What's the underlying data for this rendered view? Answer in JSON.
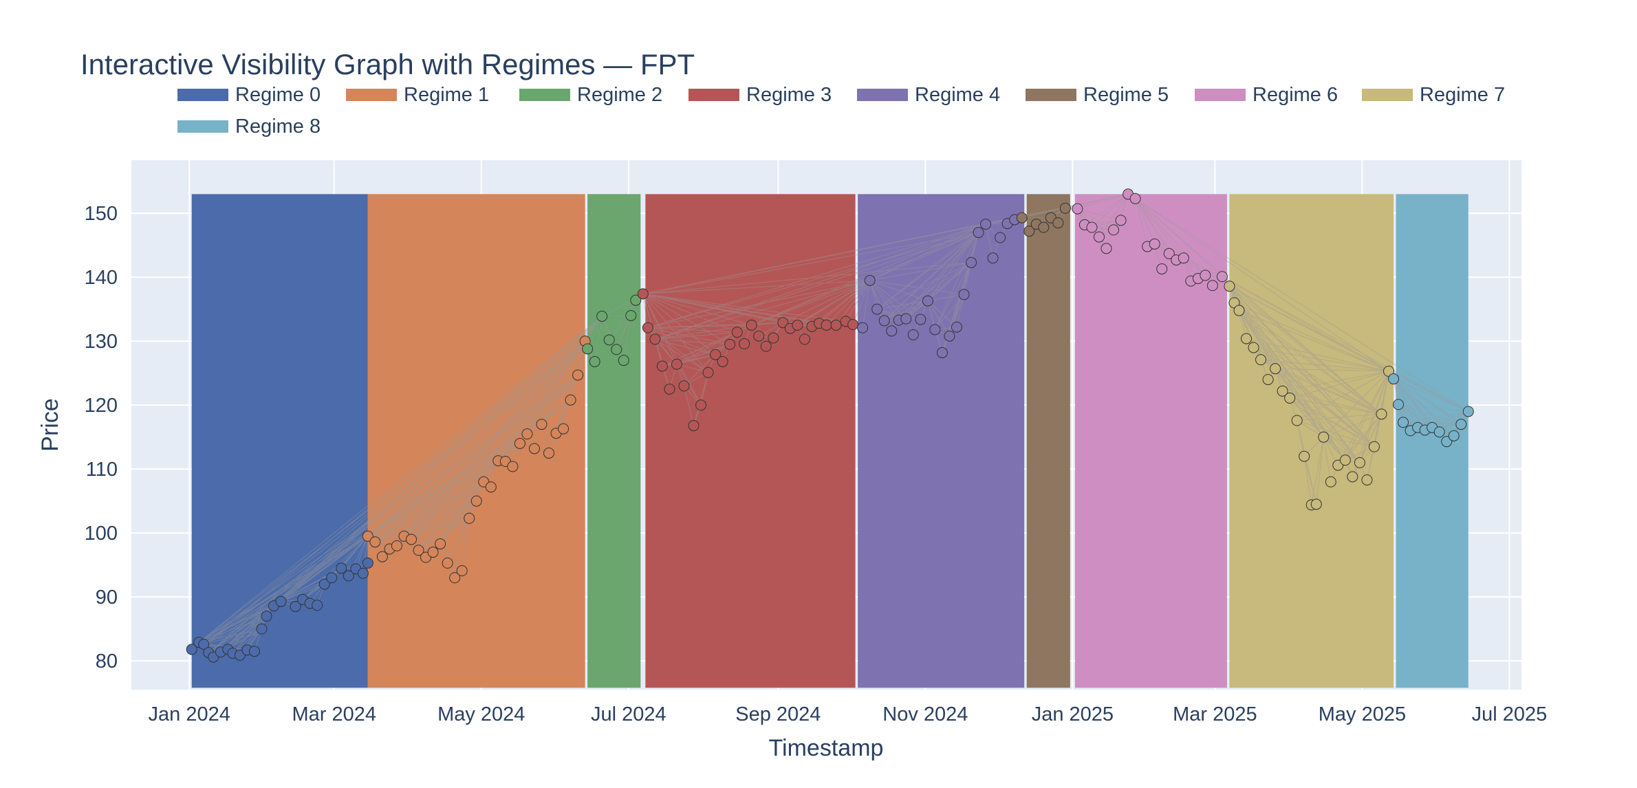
{
  "chart_data": {
    "type": "scatter",
    "title": "Interactive Visibility Graph with Regimes — FPT",
    "xlabel": "Timestamp",
    "ylabel": "Price",
    "ylim": [
      75.5,
      158.3
    ],
    "yticks": [
      80,
      90,
      100,
      110,
      120,
      130,
      140,
      150
    ],
    "ytick_labels": [
      "80",
      "90",
      "100",
      "110",
      "120",
      "130",
      "140",
      "150"
    ],
    "xlim": [
      "2023-12-08",
      "2025-07-06"
    ],
    "xticks": [
      "2024-01-01",
      "2024-03-01",
      "2024-05-01",
      "2024-07-01",
      "2024-09-01",
      "2024-11-01",
      "2025-01-01",
      "2025-03-01",
      "2025-05-01",
      "2025-07-01"
    ],
    "xtick_labels": [
      "Jan 2024",
      "Mar 2024",
      "May 2024",
      "Jul 2024",
      "Sep 2024",
      "Nov 2024",
      "Jan 2025",
      "Mar 2025",
      "May 2025",
      "Jul 2025"
    ],
    "grid": true,
    "legend_position": "top",
    "plot_bg": "#e5ecf6",
    "edge_color": "#9a9a9a",
    "band_top": 153.0,
    "series": [
      {
        "name": "Regime 0",
        "color": "#4c6bab",
        "start": "2024-01-02",
        "end": "2024-03-15",
        "points": [
          [
            "2024-01-02",
            81.8
          ],
          [
            "2024-01-05",
            82.9
          ],
          [
            "2024-01-07",
            82.6
          ],
          [
            "2024-01-09",
            81.3
          ],
          [
            "2024-01-11",
            80.6
          ],
          [
            "2024-01-14",
            81.4
          ],
          [
            "2024-01-17",
            81.8
          ],
          [
            "2024-01-19",
            81.2
          ],
          [
            "2024-01-22",
            80.9
          ],
          [
            "2024-01-25",
            81.7
          ],
          [
            "2024-01-28",
            81.5
          ],
          [
            "2024-01-31",
            85.0
          ],
          [
            "2024-02-02",
            87.0
          ],
          [
            "2024-02-05",
            88.6
          ],
          [
            "2024-02-08",
            89.3
          ],
          [
            "2024-02-14",
            88.5
          ],
          [
            "2024-02-17",
            89.6
          ],
          [
            "2024-02-20",
            89.0
          ],
          [
            "2024-02-23",
            88.7
          ],
          [
            "2024-02-26",
            92.0
          ],
          [
            "2024-02-29",
            93.0
          ],
          [
            "2024-03-04",
            94.5
          ],
          [
            "2024-03-07",
            93.3
          ],
          [
            "2024-03-10",
            94.4
          ],
          [
            "2024-03-13",
            93.7
          ],
          [
            "2024-03-15",
            95.3
          ]
        ]
      },
      {
        "name": "Regime 1",
        "color": "#d4855a",
        "start": "2024-03-15",
        "end": "2024-06-13",
        "points": [
          [
            "2024-03-15",
            99.5
          ],
          [
            "2024-03-18",
            98.6
          ],
          [
            "2024-03-21",
            96.3
          ],
          [
            "2024-03-24",
            97.5
          ],
          [
            "2024-03-27",
            98.0
          ],
          [
            "2024-03-30",
            99.5
          ],
          [
            "2024-04-02",
            99.0
          ],
          [
            "2024-04-05",
            97.3
          ],
          [
            "2024-04-08",
            96.2
          ],
          [
            "2024-04-11",
            97.0
          ],
          [
            "2024-04-14",
            98.3
          ],
          [
            "2024-04-17",
            95.3
          ],
          [
            "2024-04-20",
            93.0
          ],
          [
            "2024-04-23",
            94.1
          ],
          [
            "2024-04-26",
            102.3
          ],
          [
            "2024-04-29",
            105.0
          ],
          [
            "2024-05-02",
            108.0
          ],
          [
            "2024-05-05",
            107.2
          ],
          [
            "2024-05-08",
            111.3
          ],
          [
            "2024-05-11",
            111.2
          ],
          [
            "2024-05-14",
            110.4
          ],
          [
            "2024-05-17",
            114.0
          ],
          [
            "2024-05-20",
            115.5
          ],
          [
            "2024-05-23",
            113.2
          ],
          [
            "2024-05-26",
            117.0
          ],
          [
            "2024-05-29",
            112.5
          ],
          [
            "2024-06-01",
            115.6
          ],
          [
            "2024-06-04",
            116.3
          ],
          [
            "2024-06-07",
            120.8
          ],
          [
            "2024-06-10",
            124.7
          ],
          [
            "2024-06-13",
            130.0
          ]
        ]
      },
      {
        "name": "Regime 2",
        "color": "#6aa66e",
        "start": "2024-06-14",
        "end": "2024-07-06",
        "points": [
          [
            "2024-06-14",
            128.8
          ],
          [
            "2024-06-17",
            126.8
          ],
          [
            "2024-06-20",
            133.9
          ],
          [
            "2024-06-23",
            130.2
          ],
          [
            "2024-06-26",
            128.7
          ],
          [
            "2024-06-29",
            127.0
          ],
          [
            "2024-07-02",
            134.0
          ],
          [
            "2024-07-04",
            136.4
          ]
        ]
      },
      {
        "name": "Regime 3",
        "color": "#b55656",
        "start": "2024-07-08",
        "end": "2024-10-03",
        "points": [
          [
            "2024-07-07",
            137.4
          ],
          [
            "2024-07-09",
            132.1
          ],
          [
            "2024-07-12",
            130.3
          ],
          [
            "2024-07-15",
            126.1
          ],
          [
            "2024-07-18",
            122.5
          ],
          [
            "2024-07-21",
            126.4
          ],
          [
            "2024-07-24",
            123.0
          ],
          [
            "2024-07-28",
            116.8
          ],
          [
            "2024-07-31",
            120.0
          ],
          [
            "2024-08-03",
            125.1
          ],
          [
            "2024-08-06",
            127.9
          ],
          [
            "2024-08-09",
            126.8
          ],
          [
            "2024-08-12",
            129.5
          ],
          [
            "2024-08-15",
            131.4
          ],
          [
            "2024-08-18",
            129.6
          ],
          [
            "2024-08-21",
            132.5
          ],
          [
            "2024-08-24",
            130.8
          ],
          [
            "2024-08-27",
            129.2
          ],
          [
            "2024-08-30",
            130.5
          ],
          [
            "2024-09-03",
            132.9
          ],
          [
            "2024-09-06",
            132.0
          ],
          [
            "2024-09-09",
            132.5
          ],
          [
            "2024-09-12",
            130.3
          ],
          [
            "2024-09-15",
            132.3
          ],
          [
            "2024-09-18",
            132.8
          ],
          [
            "2024-09-21",
            132.5
          ],
          [
            "2024-09-25",
            132.5
          ],
          [
            "2024-09-29",
            133.1
          ],
          [
            "2024-10-02",
            132.6
          ]
        ]
      },
      {
        "name": "Regime 4",
        "color": "#7e73b0",
        "start": "2024-10-04",
        "end": "2024-12-12",
        "points": [
          [
            "2024-10-06",
            132.1
          ],
          [
            "2024-10-09",
            139.5
          ],
          [
            "2024-10-12",
            135.0
          ],
          [
            "2024-10-15",
            133.2
          ],
          [
            "2024-10-18",
            131.6
          ],
          [
            "2024-10-21",
            133.3
          ],
          [
            "2024-10-24",
            133.5
          ],
          [
            "2024-10-27",
            131.0
          ],
          [
            "2024-10-30",
            133.4
          ],
          [
            "2024-11-02",
            136.3
          ],
          [
            "2024-11-05",
            131.8
          ],
          [
            "2024-11-08",
            128.2
          ],
          [
            "2024-11-11",
            130.8
          ],
          [
            "2024-11-14",
            132.2
          ],
          [
            "2024-11-17",
            137.3
          ],
          [
            "2024-11-20",
            142.3
          ],
          [
            "2024-11-23",
            147.0
          ],
          [
            "2024-11-26",
            148.3
          ],
          [
            "2024-11-29",
            143.0
          ],
          [
            "2024-12-02",
            146.2
          ],
          [
            "2024-12-05",
            148.4
          ],
          [
            "2024-12-08",
            149.0
          ]
        ]
      },
      {
        "name": "Regime 5",
        "color": "#8e7660",
        "start": "2024-12-13",
        "end": "2024-12-31",
        "points": [
          [
            "2024-12-11",
            149.3
          ],
          [
            "2024-12-14",
            147.2
          ],
          [
            "2024-12-17",
            148.3
          ],
          [
            "2024-12-20",
            147.8
          ],
          [
            "2024-12-23",
            149.3
          ],
          [
            "2024-12-26",
            148.5
          ],
          [
            "2024-12-29",
            150.8
          ]
        ]
      },
      {
        "name": "Regime 6",
        "color": "#cf8ec2",
        "start": "2025-01-02",
        "end": "2025-03-06",
        "points": [
          [
            "2025-01-03",
            150.7
          ],
          [
            "2025-01-06",
            148.2
          ],
          [
            "2025-01-09",
            147.8
          ],
          [
            "2025-01-12",
            146.3
          ],
          [
            "2025-01-15",
            144.5
          ],
          [
            "2025-01-18",
            147.4
          ],
          [
            "2025-01-21",
            148.9
          ],
          [
            "2025-01-24",
            153.0
          ],
          [
            "2025-01-27",
            152.3
          ],
          [
            "2025-02-01",
            144.8
          ],
          [
            "2025-02-04",
            145.2
          ],
          [
            "2025-02-07",
            141.3
          ],
          [
            "2025-02-10",
            143.7
          ],
          [
            "2025-02-13",
            142.7
          ],
          [
            "2025-02-16",
            143.0
          ],
          [
            "2025-02-19",
            139.4
          ],
          [
            "2025-02-22",
            139.8
          ],
          [
            "2025-02-25",
            140.3
          ],
          [
            "2025-02-28",
            138.7
          ],
          [
            "2025-03-04",
            140.1
          ]
        ]
      },
      {
        "name": "Regime 7",
        "color": "#c8b97c",
        "start": "2025-03-07",
        "end": "2025-05-14",
        "points": [
          [
            "2025-03-07",
            138.6
          ],
          [
            "2025-03-09",
            136.0
          ],
          [
            "2025-03-11",
            134.8
          ],
          [
            "2025-03-14",
            130.4
          ],
          [
            "2025-03-17",
            129.0
          ],
          [
            "2025-03-20",
            127.1
          ],
          [
            "2025-03-23",
            124.0
          ],
          [
            "2025-03-26",
            125.7
          ],
          [
            "2025-03-29",
            122.2
          ],
          [
            "2025-04-01",
            121.1
          ],
          [
            "2025-04-04",
            117.6
          ],
          [
            "2025-04-07",
            112.0
          ],
          [
            "2025-04-10",
            104.4
          ],
          [
            "2025-04-12",
            104.5
          ],
          [
            "2025-04-15",
            115.0
          ],
          [
            "2025-04-18",
            108.0
          ],
          [
            "2025-04-21",
            110.6
          ],
          [
            "2025-04-24",
            111.4
          ],
          [
            "2025-04-27",
            108.8
          ],
          [
            "2025-04-30",
            111.0
          ],
          [
            "2025-05-03",
            108.3
          ],
          [
            "2025-05-06",
            113.5
          ],
          [
            "2025-05-09",
            118.6
          ],
          [
            "2025-05-12",
            125.3
          ]
        ]
      },
      {
        "name": "Regime 8",
        "color": "#77b2c9",
        "start": "2025-05-15",
        "end": "2025-06-14",
        "points": [
          [
            "2025-05-14",
            124.1
          ],
          [
            "2025-05-16",
            120.1
          ],
          [
            "2025-05-18",
            117.3
          ],
          [
            "2025-05-21",
            116.0
          ],
          [
            "2025-05-24",
            116.5
          ],
          [
            "2025-05-27",
            116.1
          ],
          [
            "2025-05-30",
            116.5
          ],
          [
            "2025-06-02",
            115.8
          ],
          [
            "2025-06-05",
            114.3
          ],
          [
            "2025-06-08",
            115.2
          ],
          [
            "2025-06-11",
            117.0
          ],
          [
            "2025-06-14",
            119.0
          ]
        ]
      }
    ]
  }
}
